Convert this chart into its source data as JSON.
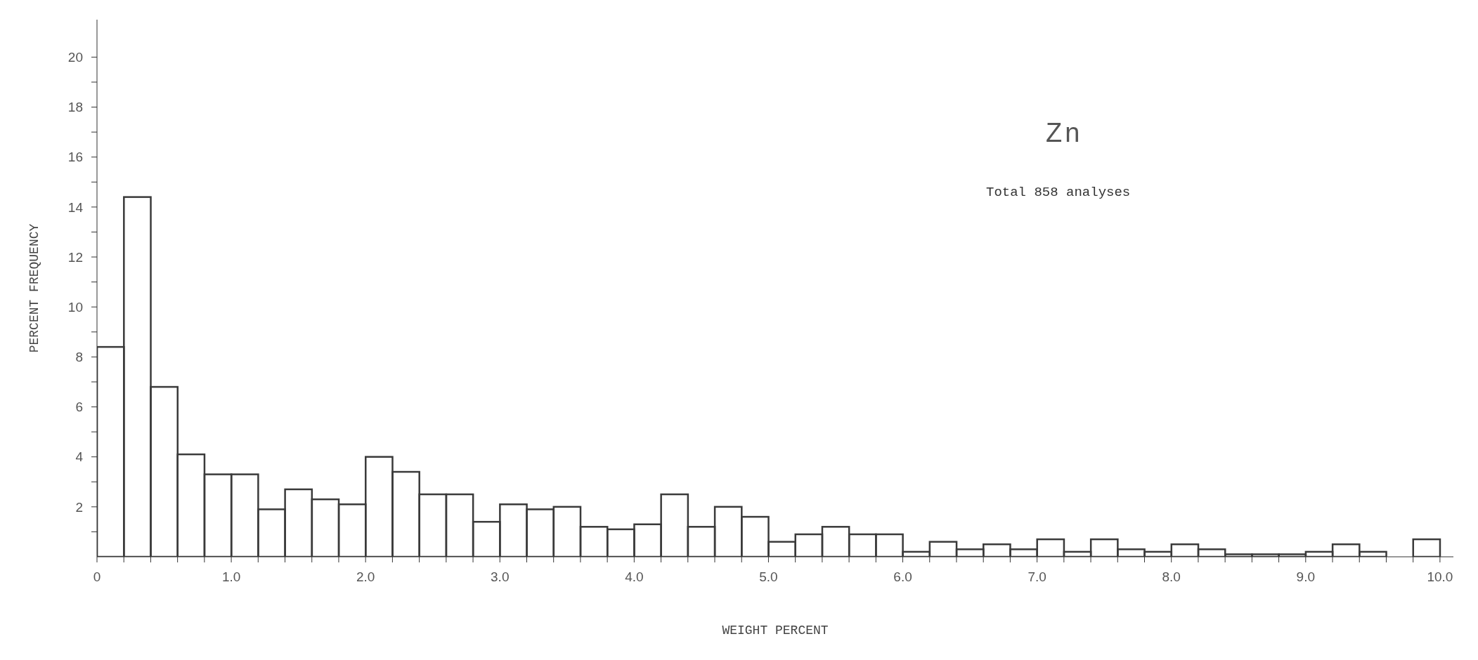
{
  "chart_data": {
    "type": "histogram",
    "title": "Zn",
    "subtitle": "Total 858 analyses",
    "xlabel": "WEIGHT  PERCENT",
    "ylabel": "PERCENT  FREQUENCY",
    "bins": [
      0,
      0.2,
      0.4,
      0.6,
      0.8,
      1.0,
      1.2,
      1.4,
      1.6,
      1.8,
      2.0,
      2.2,
      2.4,
      2.6,
      2.8,
      3.0,
      3.2,
      3.4,
      3.6,
      3.8,
      4.0,
      4.2,
      4.4,
      4.6,
      4.8,
      5.0,
      5.2,
      5.4,
      5.6,
      5.8,
      6.0,
      6.2,
      6.4,
      6.6,
      6.8,
      7.0,
      7.2,
      7.4,
      7.6,
      7.8,
      8.0,
      8.2,
      8.4,
      8.6,
      8.8,
      9.0,
      9.2,
      9.4,
      9.6,
      9.8,
      10.0
    ],
    "values": [
      8.4,
      14.4,
      6.8,
      4.1,
      3.3,
      3.3,
      1.9,
      2.7,
      2.3,
      2.1,
      4.0,
      3.4,
      2.5,
      2.5,
      1.4,
      2.1,
      1.9,
      2.0,
      1.2,
      1.1,
      1.3,
      2.5,
      1.2,
      2.0,
      1.6,
      0.6,
      0.9,
      1.2,
      0.9,
      0.9,
      0.2,
      0.6,
      0.3,
      0.5,
      0.3,
      0.7,
      0.2,
      0.7,
      0.3,
      0.2,
      0.5,
      0.3,
      0.1,
      0.1,
      0.1,
      0.2,
      0.5,
      0.2,
      0,
      0.7
    ],
    "color": "#3a3a3a",
    "xlim": [
      0,
      10.1
    ],
    "xticks": [
      {
        "value": 0,
        "label": "0"
      },
      {
        "value": 0.2,
        "label": null
      },
      {
        "value": 0.4,
        "label": null
      },
      {
        "value": 0.6,
        "label": null
      },
      {
        "value": 0.8,
        "label": null
      },
      {
        "value": 1,
        "label": "1.0"
      },
      {
        "value": 1.2,
        "label": null
      },
      {
        "value": 1.4,
        "label": null
      },
      {
        "value": 1.6,
        "label": null
      },
      {
        "value": 1.8,
        "label": null
      },
      {
        "value": 2,
        "label": "2.0"
      },
      {
        "value": 2.2,
        "label": null
      },
      {
        "value": 2.4,
        "label": null
      },
      {
        "value": 2.6,
        "label": null
      },
      {
        "value": 2.8,
        "label": null
      },
      {
        "value": 3,
        "label": "3.0"
      },
      {
        "value": 3.2,
        "label": null
      },
      {
        "value": 3.4,
        "label": null
      },
      {
        "value": 3.6,
        "label": null
      },
      {
        "value": 3.8,
        "label": null
      },
      {
        "value": 4,
        "label": "4.0"
      },
      {
        "value": 4.2,
        "label": null
      },
      {
        "value": 4.4,
        "label": null
      },
      {
        "value": 4.6,
        "label": null
      },
      {
        "value": 4.8,
        "label": null
      },
      {
        "value": 5,
        "label": "5.0"
      },
      {
        "value": 5.2,
        "label": null
      },
      {
        "value": 5.4,
        "label": null
      },
      {
        "value": 5.6,
        "label": null
      },
      {
        "value": 5.8,
        "label": null
      },
      {
        "value": 6,
        "label": "6.0"
      },
      {
        "value": 6.2,
        "label": null
      },
      {
        "value": 6.4,
        "label": null
      },
      {
        "value": 6.6,
        "label": null
      },
      {
        "value": 6.8,
        "label": null
      },
      {
        "value": 7,
        "label": "7.0"
      },
      {
        "value": 7.2,
        "label": null
      },
      {
        "value": 7.4,
        "label": null
      },
      {
        "value": 7.6,
        "label": null
      },
      {
        "value": 7.8,
        "label": null
      },
      {
        "value": 8,
        "label": "8.0"
      },
      {
        "value": 8.2,
        "label": null
      },
      {
        "value": 8.4,
        "label": null
      },
      {
        "value": 8.6,
        "label": null
      },
      {
        "value": 8.8,
        "label": null
      },
      {
        "value": 9,
        "label": "9.0"
      },
      {
        "value": 9.2,
        "label": null
      },
      {
        "value": 9.4,
        "label": null
      },
      {
        "value": 9.6,
        "label": null
      },
      {
        "value": 9.8,
        "label": null
      },
      {
        "value": 10,
        "label": "10.0"
      }
    ],
    "ylim": [
      0,
      21.5
    ],
    "yticks": [
      {
        "value": 1,
        "label": null
      },
      2,
      {
        "value": 3,
        "label": null
      },
      4,
      {
        "value": 5,
        "label": null
      },
      6,
      {
        "value": 7,
        "label": null
      },
      8,
      {
        "value": 9,
        "label": null
      },
      10,
      {
        "value": 11,
        "label": null
      },
      12,
      {
        "value": 13,
        "label": null
      },
      14,
      {
        "value": 15,
        "label": null
      },
      16,
      {
        "value": 17,
        "label": null
      },
      18,
      {
        "value": 19,
        "label": null
      },
      20
    ],
    "grid": false
  }
}
